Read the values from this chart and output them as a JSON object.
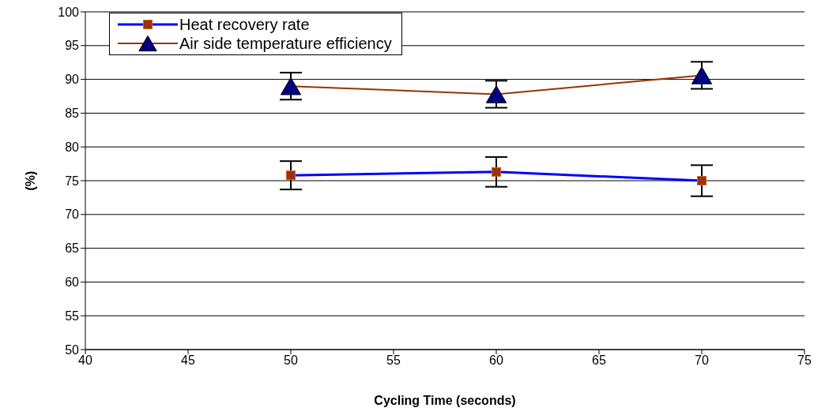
{
  "chart_data": {
    "type": "line",
    "xlabel": "Cycling Time (seconds)",
    "ylabel": "(%)",
    "x": [
      50,
      60,
      70
    ],
    "series": [
      {
        "name": "Heat recovery rate",
        "color": "#0000ff",
        "colors": [
          "#993300",
          "#993300",
          "#993300"
        ],
        "marker": "square",
        "values": [
          75.8,
          76.3,
          75.0
        ],
        "errors": [
          2.1,
          2.2,
          2.3
        ]
      },
      {
        "name": "Air side temperature efficiency",
        "color": "#993300",
        "colors": [
          "#000080",
          "#000080",
          "#000080"
        ],
        "marker": "triangle",
        "values": [
          89.0,
          87.8,
          90.6
        ],
        "errors": [
          2.0,
          2.0,
          2.0
        ]
      }
    ],
    "xlim": [
      40,
      75
    ],
    "xticks": [
      40,
      45,
      50,
      55,
      60,
      65,
      70,
      75
    ],
    "ylim": [
      50,
      100
    ],
    "yticks": [
      50,
      55,
      60,
      65,
      70,
      75,
      80,
      85,
      90,
      95,
      100
    ],
    "grid": "y",
    "legend": "top left"
  }
}
